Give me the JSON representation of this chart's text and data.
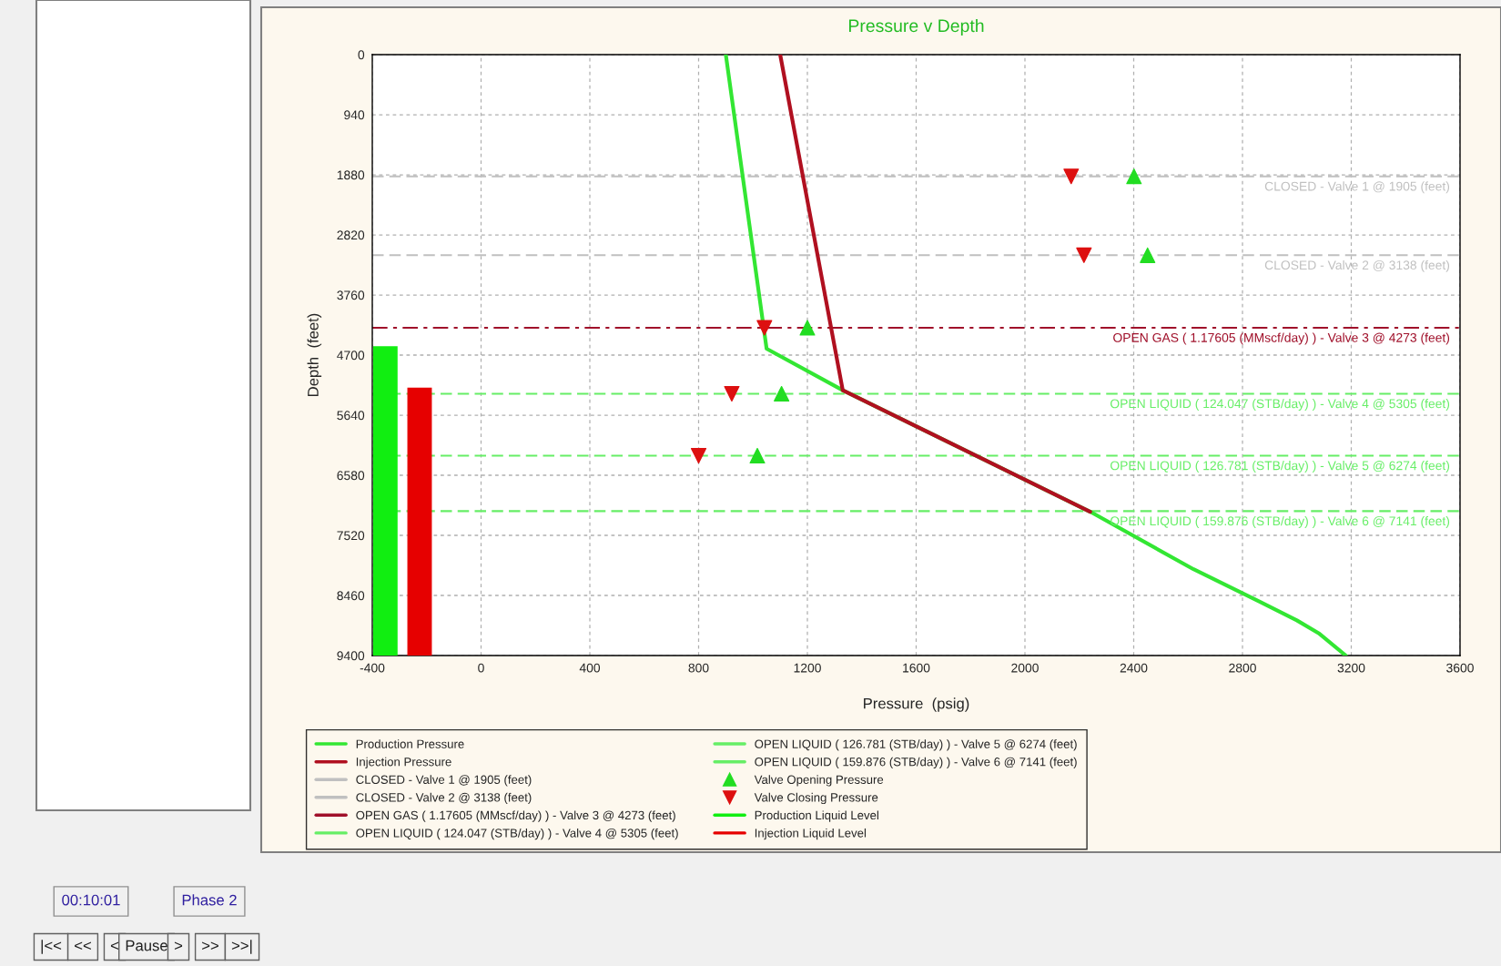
{
  "chart_data": {
    "type": "line",
    "title": "Pressure v Depth",
    "xlabel": "Pressure  (psig)",
    "ylabel": "Depth  (feet)",
    "xlim": [
      -400,
      3600
    ],
    "xticks": [
      -400,
      0,
      400,
      800,
      1200,
      1600,
      2000,
      2400,
      2800,
      3200,
      3600
    ],
    "ylim": [
      9400,
      0
    ],
    "yticks": [
      0,
      940,
      1880,
      2820,
      3760,
      4700,
      5640,
      6580,
      7520,
      8460,
      9400
    ],
    "grid": true,
    "legend": "bottom",
    "series": [
      {
        "name": "Production Pressure",
        "color": "#33e633",
        "x": [
          900,
          1050,
          1330,
          2240,
          2620,
          2860,
          3000,
          3080,
          3180
        ],
        "values": [
          0,
          4600,
          5250,
          7150,
          8050,
          8550,
          8850,
          9050,
          9400
        ]
      },
      {
        "name": "Injection Pressure",
        "color": "#b01020",
        "x": [
          1100,
          1330,
          2240
        ],
        "values": [
          0,
          5250,
          7150
        ]
      },
      {
        "name": "Valve Opening Pressure",
        "type": "scatter",
        "marker": "triangle",
        "color": "#22dd22",
        "x": [
          2401,
          2451,
          1200,
          1105,
          1016
        ],
        "values": [
          1905,
          3138,
          4273,
          5305,
          6274
        ]
      },
      {
        "name": "Valve Closing Pressure",
        "type": "scatter",
        "marker": "triangle_down",
        "color": "#dd1010",
        "x": [
          2170,
          2217,
          1042,
          922,
          800
        ],
        "values": [
          1905,
          3138,
          4273,
          5305,
          6274
        ]
      },
      {
        "name": "Production Liquid Level",
        "type": "bar",
        "color": "#11ee11",
        "x": [
          -352
        ],
        "base": [
          4560
        ],
        "values": [
          4840
        ]
      },
      {
        "name": "Injection Liquid Level",
        "type": "bar",
        "color": "#e60000",
        "x": [
          -226
        ],
        "base": [
          5210
        ],
        "values": [
          4190
        ]
      }
    ],
    "ref_lines": [
      {
        "axis": "y",
        "value": 1905,
        "label": "CLOSED - Valve 1 @ 1905 (feet)",
        "color": "#c0c0c0",
        "line_style": "dashed"
      },
      {
        "axis": "y",
        "value": 3138,
        "label": "CLOSED - Valve 2 @ 3138 (feet)",
        "color": "#c0c0c0",
        "line_style": "dashed"
      },
      {
        "axis": "y",
        "value": 4273,
        "label": "OPEN GAS ( 1.17605 (MMscf/day) ) - Valve 3 @ 4273 (feet)",
        "color": "#a0102a",
        "line_style": "dashdot"
      },
      {
        "axis": "y",
        "value": 5305,
        "label": "OPEN LIQUID ( 124.047 (STB/day) ) - Valve 4 @ 5305 (feet)",
        "color": "#66ee66",
        "line_style": "dashed"
      },
      {
        "axis": "y",
        "value": 6274,
        "label": "OPEN LIQUID ( 126.781 (STB/day) ) - Valve 5 @ 6274 (feet)",
        "color": "#66ee66",
        "line_style": "dashed"
      },
      {
        "axis": "y",
        "value": 7141,
        "label": "OPEN LIQUID ( 159.876 (STB/day) ) - Valve 6 @ 7141 (feet)",
        "color": "#66ee66",
        "line_style": "dashed"
      }
    ],
    "annotations": [
      "00:10:01",
      "Phase 2",
      "|<<",
      "<<",
      "<",
      "Pause",
      ">",
      ">>",
      ">>|"
    ]
  }
}
